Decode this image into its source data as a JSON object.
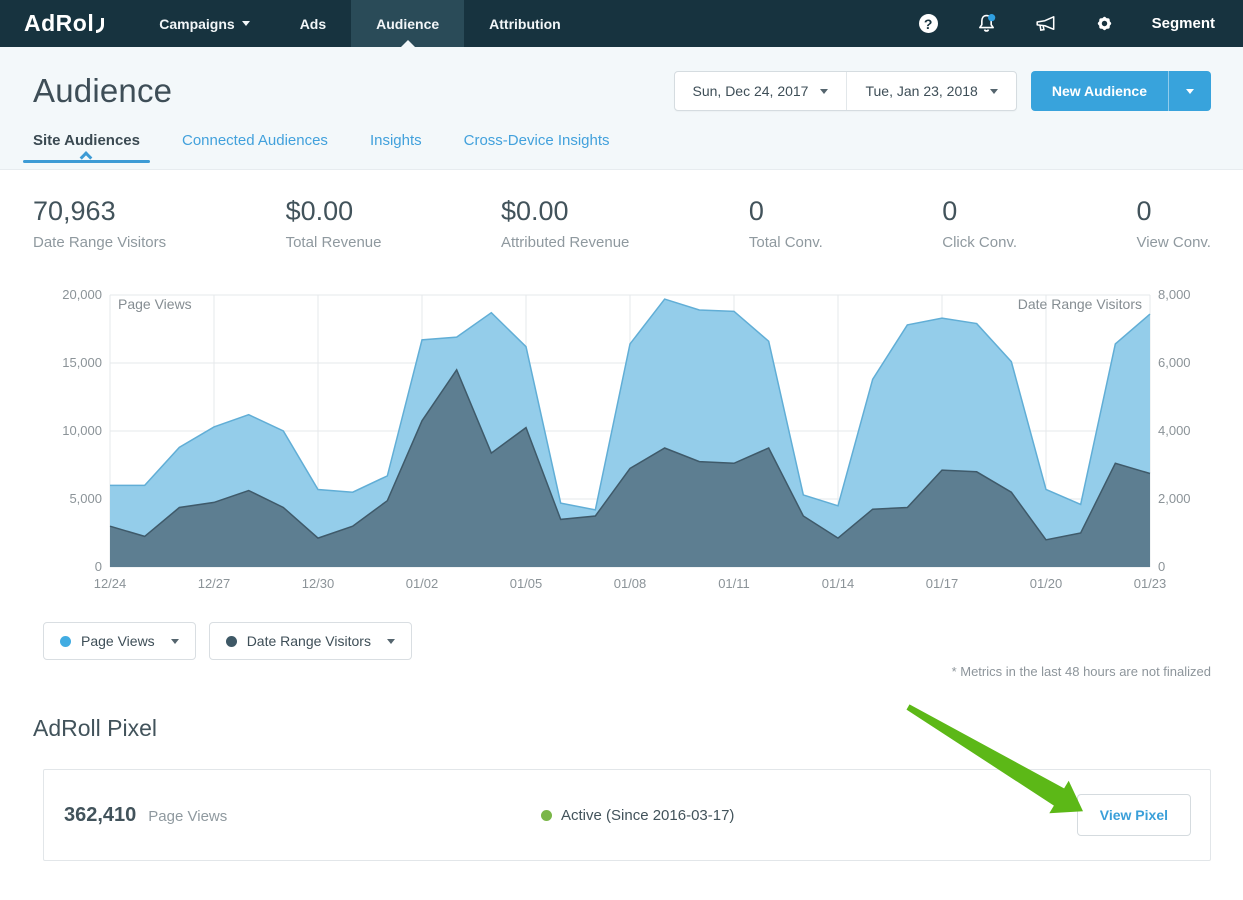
{
  "nav": {
    "logo": "AdRol",
    "items": [
      {
        "label": "Campaigns",
        "has_caret": true,
        "active": false
      },
      {
        "label": "Ads",
        "has_caret": false,
        "active": false
      },
      {
        "label": "Audience",
        "has_caret": false,
        "active": true
      },
      {
        "label": "Attribution",
        "has_caret": false,
        "active": false
      }
    ],
    "help_glyph": "?",
    "icons": [
      "help-icon",
      "bell-icon",
      "megaphone-icon",
      "gear-icon"
    ],
    "right_label": "Segment"
  },
  "header": {
    "title": "Audience",
    "date_start": "Sun, Dec 24, 2017",
    "date_end": "Tue, Jan 23, 2018",
    "new_audience_label": "New Audience",
    "tabs": [
      {
        "label": "Site Audiences",
        "active": true
      },
      {
        "label": "Connected Audiences",
        "active": false
      },
      {
        "label": "Insights",
        "active": false
      },
      {
        "label": "Cross-Device Insights",
        "active": false
      }
    ]
  },
  "stats": [
    {
      "value": "70,963",
      "label": "Date Range Visitors"
    },
    {
      "value": "$0.00",
      "label": "Total Revenue"
    },
    {
      "value": "$0.00",
      "label": "Attributed Revenue"
    },
    {
      "value": "0",
      "label": "Total Conv."
    },
    {
      "value": "0",
      "label": "Click Conv."
    },
    {
      "value": "0",
      "label": "View Conv."
    }
  ],
  "chart_data": {
    "type": "area",
    "title": "",
    "grid": true,
    "x": [
      "12/24",
      "12/25",
      "12/26",
      "12/27",
      "12/28",
      "12/29",
      "12/30",
      "12/31",
      "01/01",
      "01/02",
      "01/03",
      "01/04",
      "01/05",
      "01/06",
      "01/07",
      "01/08",
      "01/09",
      "01/10",
      "01/11",
      "01/12",
      "01/13",
      "01/14",
      "01/15",
      "01/16",
      "01/17",
      "01/18",
      "01/19",
      "01/20",
      "01/21",
      "01/22",
      "01/23"
    ],
    "x_tick_labels": [
      "12/24",
      "12/27",
      "12/30",
      "01/02",
      "01/05",
      "01/08",
      "01/11",
      "01/14",
      "01/17",
      "01/20",
      "01/23"
    ],
    "left_axis": {
      "label": "Page Views",
      "min": 0,
      "max": 20000,
      "ticks": [
        "0",
        "5,000",
        "10,000",
        "15,000",
        "20,000"
      ]
    },
    "right_axis": {
      "label": "Date Range Visitors",
      "min": 0,
      "max": 8000,
      "ticks": [
        "0",
        "2,000",
        "4,000",
        "6,000",
        "8,000"
      ]
    },
    "series": [
      {
        "name": "Page Views",
        "axis": "left",
        "fill": "#94cdea",
        "line": "#61aed6",
        "values": [
          6000,
          6000,
          8800,
          10300,
          11200,
          10000,
          5700,
          5500,
          6700,
          16700,
          16900,
          18700,
          16200,
          4700,
          4200,
          16400,
          19700,
          18900,
          18800,
          16600,
          5300,
          4500,
          13800,
          17800,
          18300,
          17900,
          15100,
          5700,
          4600,
          16400,
          18600
        ]
      },
      {
        "name": "Date Range Visitors",
        "axis": "right",
        "fill": "#5d7e91",
        "line": "#3f5a6a",
        "values": [
          1200,
          900,
          1750,
          1900,
          2250,
          1750,
          850,
          1200,
          1950,
          4300,
          5800,
          3350,
          4100,
          1400,
          1500,
          2900,
          3500,
          3100,
          3050,
          3500,
          1500,
          850,
          1700,
          1750,
          2850,
          2800,
          2200,
          800,
          1000,
          3050,
          2750
        ]
      }
    ]
  },
  "legend": [
    {
      "label": "Page Views",
      "dot_color": "#41ace2"
    },
    {
      "label": "Date Range Visitors",
      "dot_color": "#3e5866"
    }
  ],
  "footnote": "* Metrics in the last 48 hours are not finalized",
  "pixel_section": {
    "title": "AdRoll Pixel",
    "page_views_value": "362,410",
    "page_views_label": "Page Views",
    "status": "Active (Since 2016-03-17)",
    "status_color": "#7ab648",
    "view_pixel_label": "View Pixel"
  },
  "colors": {
    "nav_bg": "#17333f",
    "accent_blue": "#38a3dc",
    "link_blue": "#3a9fd9",
    "status_green": "#7ab648",
    "arrow_green": "#5cb817",
    "chart_blue_fill": "#94cdea",
    "chart_dark_fill": "#5d7e91"
  }
}
